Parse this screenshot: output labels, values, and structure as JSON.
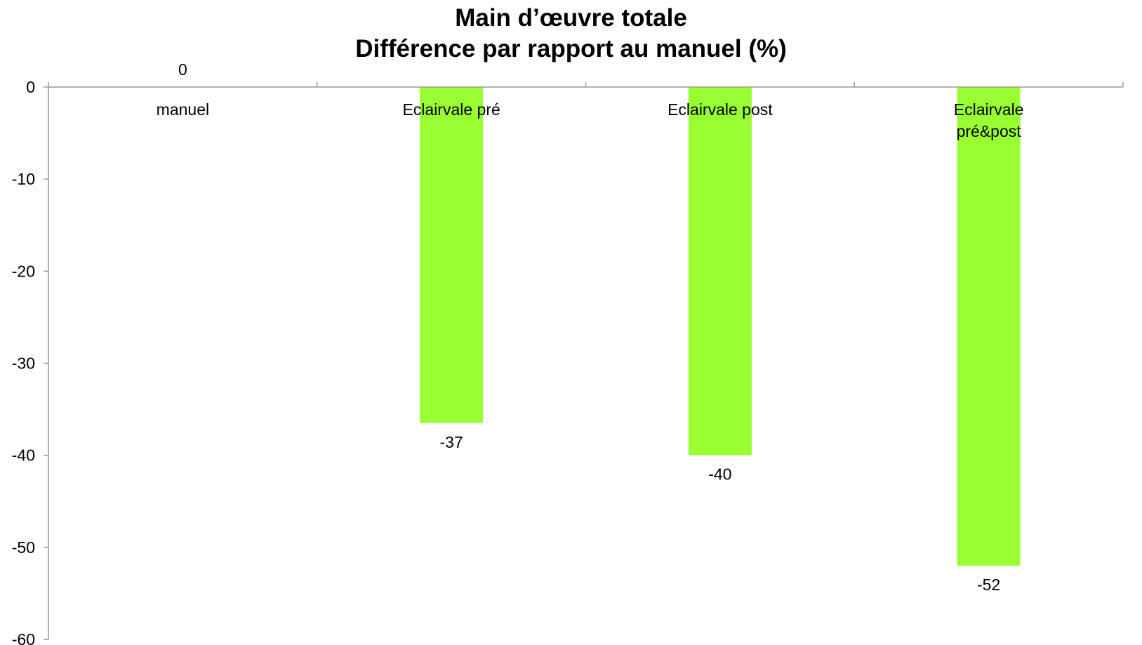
{
  "chart_data": {
    "type": "bar",
    "title": "Main d’œuvre totale",
    "subtitle": "Différence par rapport au manuel (%)",
    "categories": [
      "manuel",
      "Eclairvale pré",
      "Eclairvale post",
      "Eclairvale pré&post"
    ],
    "category_label_lines": [
      [
        "manuel"
      ],
      [
        "Eclairvale pré"
      ],
      [
        "Eclairvale post"
      ],
      [
        "Eclairvale",
        "pré&post"
      ]
    ],
    "values": [
      0,
      -36.5,
      -40,
      -52
    ],
    "data_labels": [
      "0",
      "-37",
      "-40",
      "-52"
    ],
    "ylim": [
      -60,
      0
    ],
    "yticks": [
      0,
      -10,
      -20,
      -30,
      -40,
      -50,
      -60
    ],
    "bar_color": "#99FF33",
    "axis_color": "#999999",
    "grid": false,
    "legend": "none",
    "xlabel": "",
    "ylabel": ""
  }
}
